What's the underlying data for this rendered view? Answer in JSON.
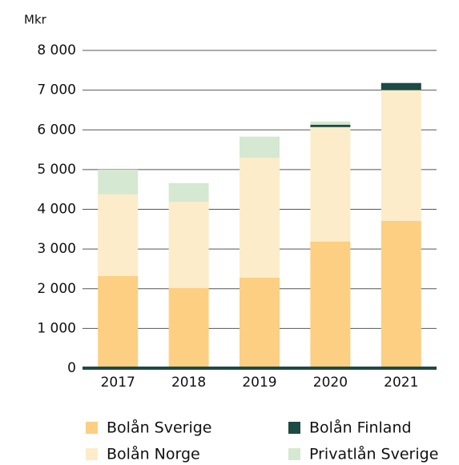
{
  "chart_data": {
    "type": "stacked_bar",
    "y_axis_label": "Mkr",
    "categories": [
      "2017",
      "2018",
      "2019",
      "2020",
      "2021"
    ],
    "series": [
      {
        "name": "Bolån Sverige",
        "color": "#fccf83",
        "values": [
          2320,
          2020,
          2280,
          3190,
          3710
        ]
      },
      {
        "name": "Bolån Norge",
        "color": "#fcecc9",
        "values": [
          2055,
          2170,
          3020,
          2880,
          3290
        ]
      },
      {
        "name": "Bolån Finland",
        "color": "#1d4a44",
        "values": [
          0,
          0,
          0,
          60,
          180
        ]
      },
      {
        "name": "Privatlån Sverige",
        "color": "#d5e8d1",
        "values": [
          625,
          470,
          530,
          80,
          0
        ]
      }
    ],
    "ylim": [
      0,
      8000
    ],
    "yticks": [
      0,
      {
        "value": 1000,
        "label": "1 000"
      },
      {
        "value": 2000,
        "label": "2 000"
      },
      {
        "value": 3000,
        "label": "3 000"
      },
      {
        "value": 4000,
        "label": "4 000"
      },
      {
        "value": 5000,
        "label": "5 000"
      },
      {
        "value": 6000,
        "label": "6 000"
      },
      {
        "value": 7000,
        "label": "7 000"
      },
      {
        "value": 8000,
        "label": "8 000"
      }
    ],
    "grid": true
  }
}
